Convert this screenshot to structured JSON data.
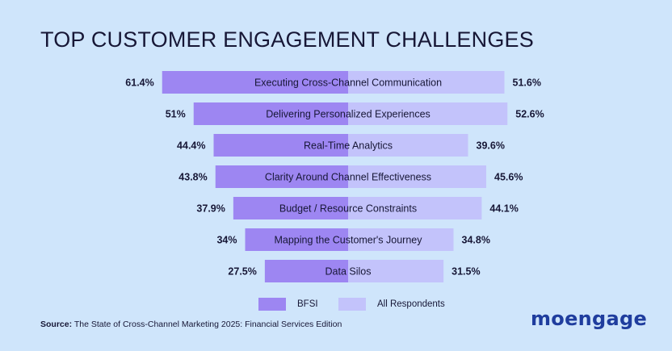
{
  "title": "TOP CUSTOMER ENGAGEMENT CHALLENGES",
  "source": {
    "label": "Source:",
    "text": " The State of Cross-Channel Marketing 2025: Financial Services Edition"
  },
  "logo": "moengage",
  "colors": {
    "background": "#cfe5fb",
    "bfsi": "#9d86f2",
    "all_respondents": "#c3c3fb",
    "text": "#171736",
    "logo": "#1f3d9e"
  },
  "chart_data": {
    "type": "bar",
    "orientation": "diverging-horizontal",
    "title": "TOP CUSTOMER ENGAGEMENT CHALLENGES",
    "categories": [
      "Executing Cross-Channel Communication",
      "Delivering Personalized Experiences",
      "Real-Time Analytics",
      "Clarity Around Channel Effectiveness",
      "Budget / Resource Constraints",
      "Mapping the Customer's Journey",
      "Data Silos"
    ],
    "series": [
      {
        "name": "BFSI",
        "values": [
          61.4,
          51,
          44.4,
          43.8,
          37.9,
          34,
          27.5
        ],
        "labels": [
          "61.4%",
          "51%",
          "44.4%",
          "43.8%",
          "37.9%",
          "34%",
          "27.5%"
        ]
      },
      {
        "name": "All Respondents",
        "values": [
          51.6,
          52.6,
          39.6,
          45.6,
          44.1,
          34.8,
          31.5
        ],
        "labels": [
          "51.6%",
          "52.6%",
          "39.6%",
          "45.6%",
          "44.1%",
          "34.8%",
          "31.5%"
        ]
      }
    ],
    "legend": "bottom-center",
    "grid": false
  }
}
